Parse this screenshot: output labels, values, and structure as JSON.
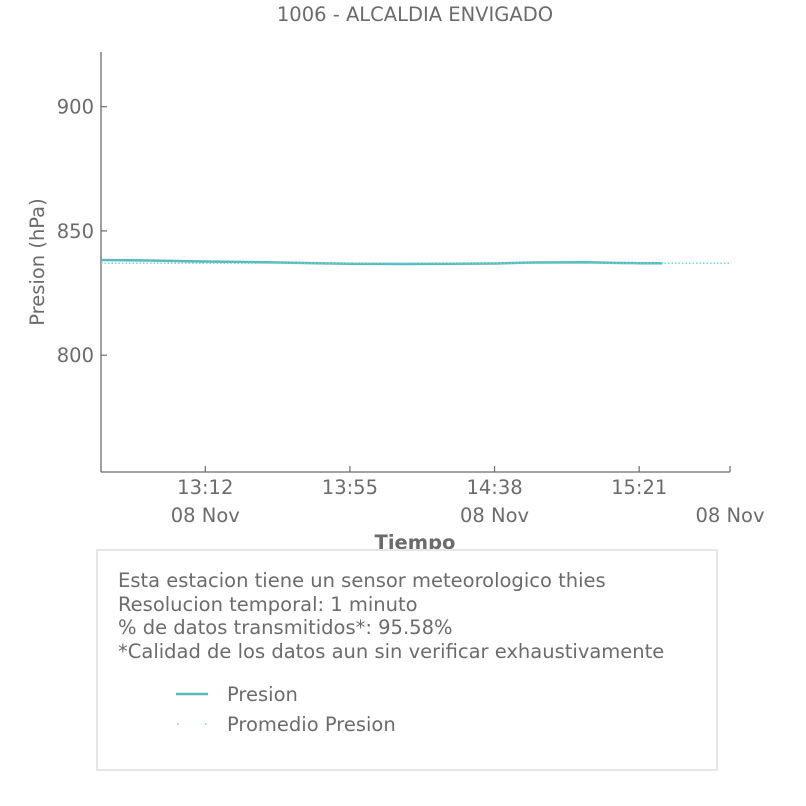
{
  "colors": {
    "series": "#5bb8bd",
    "average": "#67d6d3",
    "axis": "#6b6b6b",
    "text": "#6b6b6b"
  },
  "chart_data": {
    "type": "line",
    "title": "1006 - ALCALDIA ENVIGADO",
    "xlabel": "Tiempo",
    "ylabel": "Presion (hPa)",
    "y_ticks": [
      800,
      850,
      900
    ],
    "x_ticks": [
      {
        "time": "13:12",
        "date": "08 Nov"
      },
      {
        "time": "13:55",
        "date": ""
      },
      {
        "time": "14:38",
        "date": "08 Nov"
      },
      {
        "time": "15:21",
        "date": ""
      },
      {
        "time": "",
        "date": "08 Nov"
      }
    ],
    "xlim": [
      "12:41",
      "15:48"
    ],
    "ylim": [
      753,
      922
    ],
    "series": [
      {
        "name": "Presion",
        "style": "solid",
        "points": [
          {
            "x": "12:41",
            "y": 838.3
          },
          {
            "x": "12:55",
            "y": 838.1
          },
          {
            "x": "13:12",
            "y": 837.7
          },
          {
            "x": "13:30",
            "y": 837.4
          },
          {
            "x": "13:45",
            "y": 837.0
          },
          {
            "x": "13:55",
            "y": 836.8
          },
          {
            "x": "14:10",
            "y": 836.7
          },
          {
            "x": "14:25",
            "y": 836.8
          },
          {
            "x": "14:38",
            "y": 836.9
          },
          {
            "x": "14:50",
            "y": 837.3
          },
          {
            "x": "15:05",
            "y": 837.4
          },
          {
            "x": "15:15",
            "y": 837.1
          },
          {
            "x": "15:21",
            "y": 837.0
          },
          {
            "x": "15:28",
            "y": 837.0
          }
        ]
      },
      {
        "name": "Promedio Presion",
        "style": "dotted",
        "points": [
          {
            "x": "12:41",
            "y": 837.0
          },
          {
            "x": "15:48",
            "y": 837.0
          }
        ]
      }
    ],
    "grid": false,
    "legend": "bottom"
  },
  "info": {
    "lines": [
      "Esta estacion tiene un sensor meteorologico thies",
      "Resolucion temporal: 1 minuto",
      "% de datos transmitidos*: 95.58%",
      "*Calidad de los datos aun sin verificar exhaustivamente"
    ]
  }
}
